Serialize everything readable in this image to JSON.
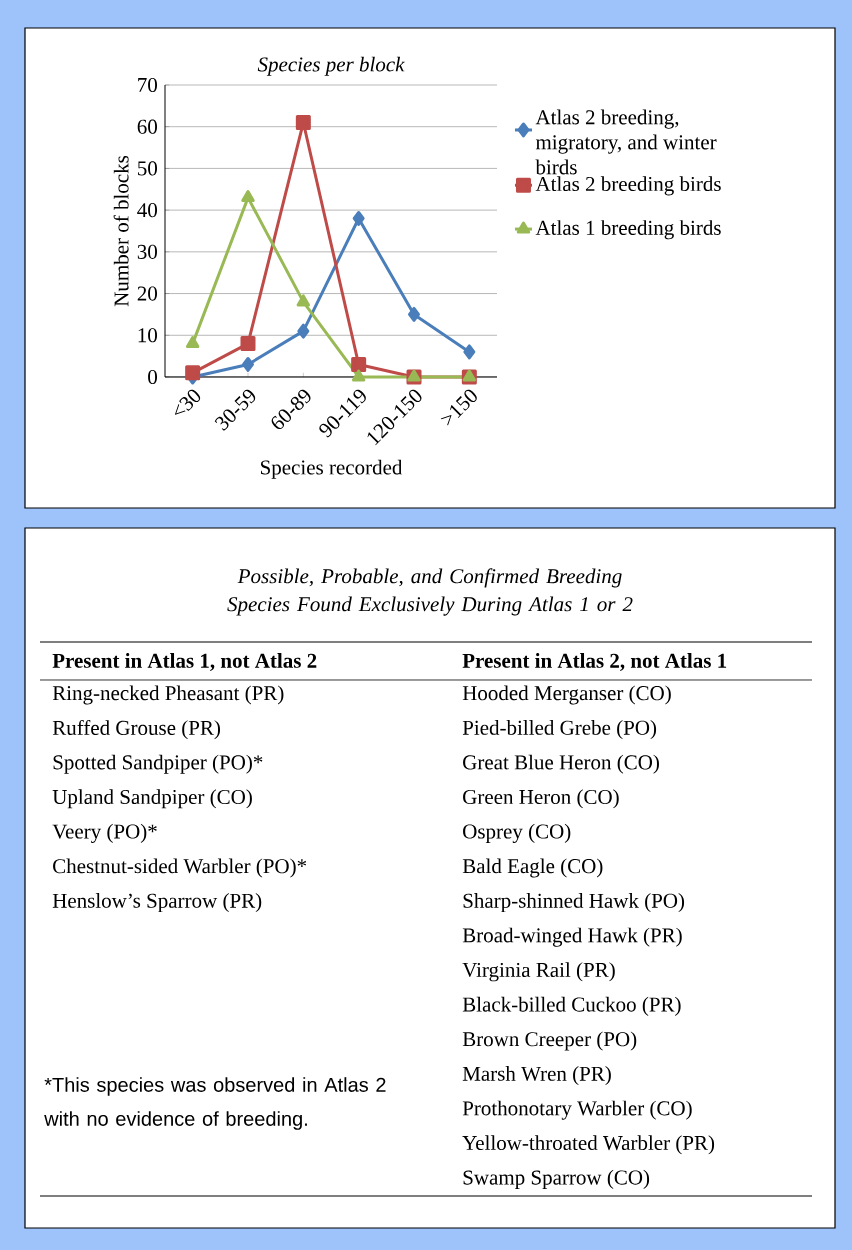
{
  "chart_data": [
    {
      "type": "line",
      "title": "Species per block",
      "xlabel": "Species recorded",
      "ylabel": "Number of blocks",
      "categories": [
        "<30",
        "30-59",
        "60-89",
        "90-119",
        "120-150",
        ">150"
      ],
      "ylim": [
        0,
        70
      ],
      "yticks": [
        0,
        10,
        20,
        30,
        40,
        50,
        60,
        70
      ],
      "grid": "y",
      "legend": "right",
      "line_style": "solid",
      "series": [
        {
          "name": "Atlas 2 breeding, migratory, and winter birds",
          "color": "#4a7ebb",
          "marker": "diamond",
          "values": [
            0,
            3,
            11,
            38,
            15,
            6
          ]
        },
        {
          "name": "Atlas 2 breeding birds",
          "color": "#be4b48",
          "marker": "square",
          "values": [
            1,
            8,
            61,
            3,
            0,
            0
          ]
        },
        {
          "name": "Atlas 1 breeding birds",
          "color": "#98b954",
          "marker": "triangle",
          "values": [
            8,
            43,
            18,
            0,
            0,
            0
          ]
        }
      ]
    },
    {
      "type": "other",
      "title": "Possible, Probable, and Confirmed Breeding Species Found Exclusively During Atlas 1 or 2",
      "annotations": [
        "*This species was observed in Atlas 2 with no evidence of breeding."
      ]
    },
    {
      "type": "other",
      "title": "Present in Atlas 1, not Atlas 2",
      "annotations": [
        "Ring-necked Pheasant (PR)",
        "Ruffed Grouse (PR)",
        "Spotted Sandpiper (PO)*",
        "Upland Sandpiper (CO)",
        "Veery (PO)*",
        "Chestnut-sided Warbler (PO)*",
        "Henslow’s Sparrow (PR)"
      ]
    },
    {
      "type": "other",
      "title": "Present in Atlas 2, not Atlas 1",
      "annotations": [
        "Hooded Merganser (CO)",
        "Pied-billed Grebe (PO)",
        "Great Blue Heron (CO)",
        "Green Heron (CO)",
        "Osprey (CO)",
        "Bald Eagle (CO)",
        "Sharp-shinned Hawk (PO)",
        "Broad-winged Hawk (PR)",
        "Virginia Rail (PR)",
        "Black-billed Cuckoo (PR)",
        "Brown Creeper (PO)",
        "Marsh Wren (PR)",
        "Prothonotary Warbler (CO)",
        "Yellow-throated Warbler (PR)",
        "Swamp Sparrow (CO)"
      ]
    }
  ]
}
